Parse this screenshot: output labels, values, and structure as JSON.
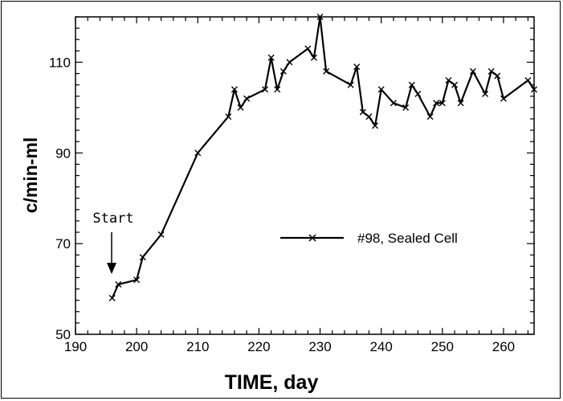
{
  "chart_data": {
    "type": "line",
    "title": "",
    "xlabel": "TIME, day",
    "ylabel": "c/min-ml",
    "xlim": [
      190,
      265
    ],
    "ylim": [
      50,
      120
    ],
    "xticks": [
      190,
      200,
      210,
      220,
      230,
      240,
      250,
      260
    ],
    "yticks": [
      50,
      70,
      90,
      110
    ],
    "grid": false,
    "legend_position": "center-right",
    "annotation": "Start",
    "annotation_x": 196,
    "series": [
      {
        "name": "#98, Sealed Cell",
        "marker": "x",
        "color": "#000000",
        "x": [
          196,
          197,
          200,
          201,
          204,
          210,
          215,
          216,
          217,
          218,
          221,
          222,
          223,
          224,
          225,
          228,
          229,
          230,
          231,
          235,
          236,
          237,
          238,
          239,
          240,
          242,
          244,
          245,
          246,
          248,
          249,
          250,
          251,
          252,
          253,
          255,
          257,
          258,
          259,
          260,
          264,
          265
        ],
        "y": [
          58,
          61,
          62,
          67,
          72,
          90,
          98,
          104,
          100,
          102,
          104,
          111,
          104,
          108,
          110,
          113,
          111,
          120,
          108,
          105,
          109,
          99,
          98,
          96,
          104,
          101,
          100,
          105,
          103,
          98,
          101,
          101,
          106,
          105,
          101,
          108,
          103,
          108,
          107,
          102,
          106,
          104
        ]
      }
    ]
  }
}
